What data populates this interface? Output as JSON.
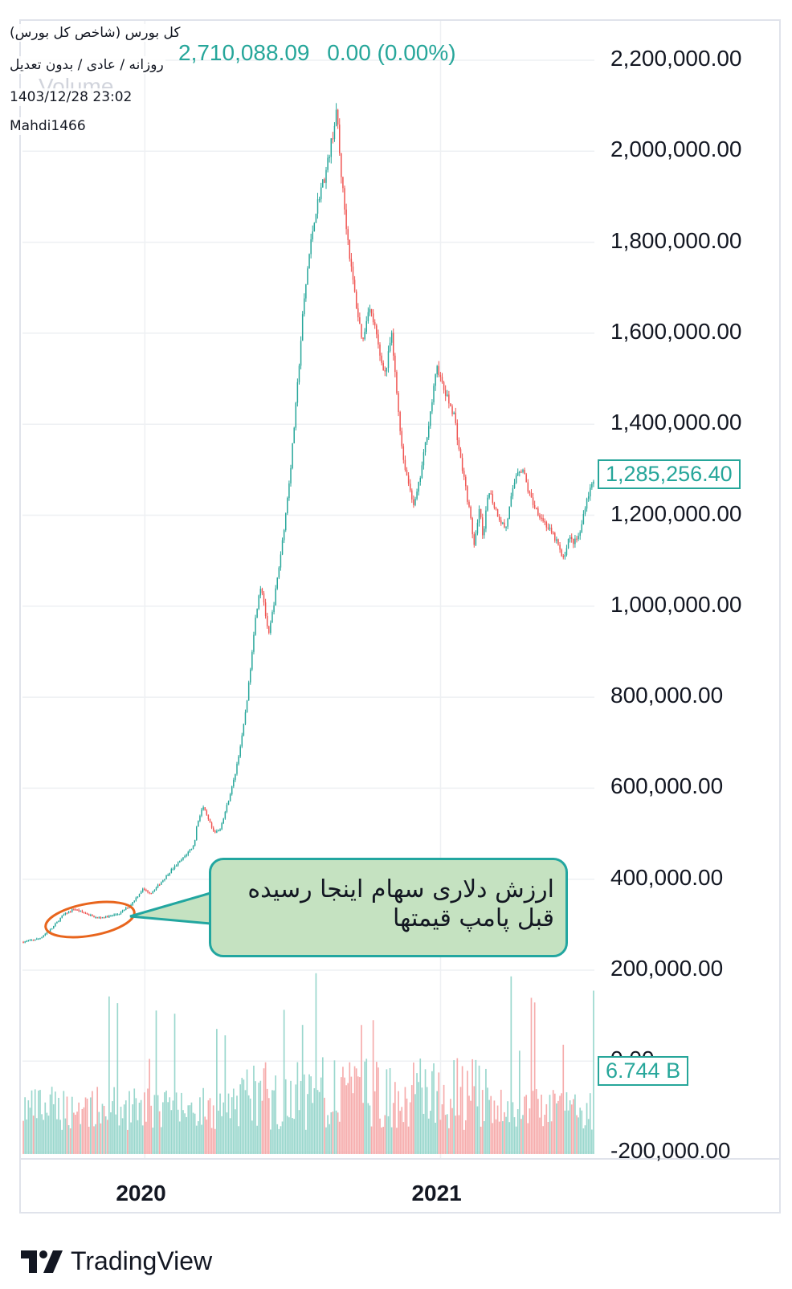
{
  "header": {
    "symbol_title": "کل بورس (شاخص کل بورس)",
    "chart_settings": "روزانه / عادی / بدون تعدیل",
    "datetime": "1403/12/28 23:02",
    "author": "Mahdi1466",
    "last_value": "2,710,088.09",
    "change": "0.00 (0.00%)",
    "volume_label": "Volume"
  },
  "colors": {
    "up": "#26a69a",
    "down": "#ef5350",
    "up_volume": "#8fd3c8",
    "down_volume": "#f5a3a3",
    "grid": "#eef0f3",
    "annotation_ellipse": "#e8651d",
    "callout_fill": "#c5e2c1",
    "callout_border": "#22a6a0"
  },
  "annotation": {
    "text": "ارزش دلاری سهام اینجا رسیده قبل پامپ قیمتها"
  },
  "brand": {
    "name": "TradingView",
    "logo_icon": "tradingview-logo-icon"
  },
  "chart_data": {
    "type": "candlestick",
    "title": "کل بورس (شاخص کل بورس)",
    "ylim": [
      -220000,
      2300000
    ],
    "y_ticks": [
      "2,200,000.00",
      "2,000,000.00",
      "1,800,000.00",
      "1,600,000.00",
      "1,400,000.00",
      "1,200,000.00",
      "1,000,000.00",
      "800,000.00",
      "600,000.00",
      "400,000.00",
      "200,000.00",
      "0.00",
      "-200,000.00"
    ],
    "y_tick_values": [
      2200000,
      2000000,
      1800000,
      1600000,
      1400000,
      1200000,
      1000000,
      800000,
      600000,
      400000,
      200000,
      0,
      -200000
    ],
    "x_ticks": [
      "2020",
      "2021"
    ],
    "x_tick_positions": [
      0.214,
      0.731
    ],
    "current_price_label": "1,285,256.40",
    "current_price": 1285256.4,
    "current_volume_label": "6.744 B",
    "grid": true,
    "close_series": [
      [
        0.0,
        262000
      ],
      [
        0.03,
        270000
      ],
      [
        0.05,
        290000
      ],
      [
        0.07,
        320000
      ],
      [
        0.09,
        335000
      ],
      [
        0.11,
        325000
      ],
      [
        0.13,
        315000
      ],
      [
        0.15,
        318000
      ],
      [
        0.17,
        325000
      ],
      [
        0.19,
        345000
      ],
      [
        0.21,
        378000
      ],
      [
        0.225,
        370000
      ],
      [
        0.24,
        390000
      ],
      [
        0.26,
        420000
      ],
      [
        0.28,
        445000
      ],
      [
        0.3,
        475000
      ],
      [
        0.305,
        520000
      ],
      [
        0.315,
        560000
      ],
      [
        0.325,
        530000
      ],
      [
        0.335,
        500000
      ],
      [
        0.345,
        510000
      ],
      [
        0.355,
        550000
      ],
      [
        0.37,
        620000
      ],
      [
        0.385,
        720000
      ],
      [
        0.395,
        820000
      ],
      [
        0.405,
        950000
      ],
      [
        0.415,
        1045000
      ],
      [
        0.42,
        1030000
      ],
      [
        0.425,
        980000
      ],
      [
        0.43,
        930000
      ],
      [
        0.44,
        1010000
      ],
      [
        0.45,
        1100000
      ],
      [
        0.46,
        1200000
      ],
      [
        0.47,
        1320000
      ],
      [
        0.48,
        1470000
      ],
      [
        0.49,
        1640000
      ],
      [
        0.5,
        1760000
      ],
      [
        0.51,
        1850000
      ],
      [
        0.52,
        1910000
      ],
      [
        0.53,
        1950000
      ],
      [
        0.54,
        2020000
      ],
      [
        0.55,
        2090000
      ],
      [
        0.555,
        1980000
      ],
      [
        0.565,
        1850000
      ],
      [
        0.575,
        1740000
      ],
      [
        0.585,
        1650000
      ],
      [
        0.595,
        1580000
      ],
      [
        0.605,
        1660000
      ],
      [
        0.615,
        1620000
      ],
      [
        0.625,
        1550000
      ],
      [
        0.635,
        1510000
      ],
      [
        0.645,
        1600000
      ],
      [
        0.655,
        1460000
      ],
      [
        0.665,
        1330000
      ],
      [
        0.675,
        1270000
      ],
      [
        0.685,
        1220000
      ],
      [
        0.695,
        1280000
      ],
      [
        0.705,
        1360000
      ],
      [
        0.715,
        1440000
      ],
      [
        0.725,
        1530000
      ],
      [
        0.735,
        1480000
      ],
      [
        0.745,
        1450000
      ],
      [
        0.755,
        1420000
      ],
      [
        0.765,
        1330000
      ],
      [
        0.775,
        1260000
      ],
      [
        0.785,
        1180000
      ],
      [
        0.79,
        1130000
      ],
      [
        0.8,
        1220000
      ],
      [
        0.805,
        1140000
      ],
      [
        0.815,
        1260000
      ],
      [
        0.825,
        1220000
      ],
      [
        0.835,
        1190000
      ],
      [
        0.845,
        1170000
      ],
      [
        0.855,
        1240000
      ],
      [
        0.865,
        1300000
      ],
      [
        0.875,
        1300000
      ],
      [
        0.885,
        1250000
      ],
      [
        0.895,
        1220000
      ],
      [
        0.905,
        1200000
      ],
      [
        0.915,
        1180000
      ],
      [
        0.925,
        1160000
      ],
      [
        0.935,
        1140000
      ],
      [
        0.945,
        1100000
      ],
      [
        0.955,
        1150000
      ],
      [
        0.965,
        1140000
      ],
      [
        0.975,
        1160000
      ],
      [
        0.985,
        1230000
      ],
      [
        0.995,
        1265000
      ],
      [
        1.0,
        1285256
      ]
    ]
  }
}
